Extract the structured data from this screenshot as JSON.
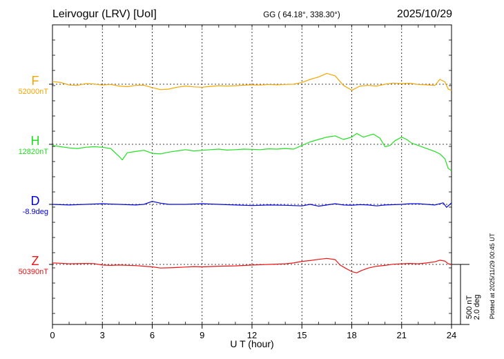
{
  "header": {
    "station": "Leirvogur (LRV)  [UoI]",
    "coords": "GG ( 64.18°, 338.30°)",
    "date": "2025/10/29"
  },
  "footer": {
    "plotted": "Plotted at 2025/11/29 00:45 UT"
  },
  "scale": {
    "line1": "500 nT",
    "line2": "2.0 deg"
  },
  "chart_data": {
    "type": "line",
    "xlabel": "U T (hour)",
    "xlim": [
      0,
      24
    ],
    "xticks": [
      "0",
      "3",
      "6",
      "9",
      "12",
      "15",
      "18",
      "21",
      "24"
    ],
    "grid": true,
    "scale_bar": {
      "magnetic_nT": 500,
      "angle_deg": 2.0
    },
    "panels": [
      {
        "name": "F",
        "baseline_label": "52000nT",
        "unit": "nT",
        "color": "#f5a500",
        "series": [
          [
            0,
            52022
          ],
          [
            0.5,
            52015
          ],
          [
            1,
            51993
          ],
          [
            1.5,
            51990
          ],
          [
            2,
            52005
          ],
          [
            2.5,
            52002
          ],
          [
            3,
            51993
          ],
          [
            3.5,
            51998
          ],
          [
            4,
            51985
          ],
          [
            4.5,
            51980
          ],
          [
            5,
            51990
          ],
          [
            5.5,
            51992
          ],
          [
            6,
            51972
          ],
          [
            6.5,
            51955
          ],
          [
            7,
            51960
          ],
          [
            7.5,
            51975
          ],
          [
            8,
            51985
          ],
          [
            8.5,
            51978
          ],
          [
            9,
            51975
          ],
          [
            9.5,
            51982
          ],
          [
            10,
            51988
          ],
          [
            10.5,
            51985
          ],
          [
            11,
            51988
          ],
          [
            11.5,
            51992
          ],
          [
            12,
            51995
          ],
          [
            12.5,
            51993
          ],
          [
            13,
            51998
          ],
          [
            13.5,
            51995
          ],
          [
            14,
            51998
          ],
          [
            14.5,
            52000
          ],
          [
            15,
            52015
          ],
          [
            15.5,
            52040
          ],
          [
            16,
            52060
          ],
          [
            16.5,
            52090
          ],
          [
            17,
            52070
          ],
          [
            17.5,
            51990
          ],
          [
            18,
            51950
          ],
          [
            18.5,
            51985
          ],
          [
            19,
            51990
          ],
          [
            19.5,
            51985
          ],
          [
            20,
            52000
          ],
          [
            20.5,
            52010
          ],
          [
            21,
            52005
          ],
          [
            21.5,
            52008
          ],
          [
            22,
            51998
          ],
          [
            22.5,
            51995
          ],
          [
            23,
            51990
          ],
          [
            23.3,
            52040
          ],
          [
            23.6,
            52020
          ],
          [
            23.8,
            51960
          ],
          [
            24,
            51950
          ]
        ]
      },
      {
        "name": "H",
        "baseline_label": "12820nT",
        "unit": "nT",
        "color": "#1fe01f",
        "series": [
          [
            0,
            12810
          ],
          [
            0.5,
            12800
          ],
          [
            1,
            12790
          ],
          [
            1.5,
            12785
          ],
          [
            2,
            12795
          ],
          [
            2.5,
            12800
          ],
          [
            3,
            12795
          ],
          [
            3.5,
            12785
          ],
          [
            4,
            12720
          ],
          [
            4.2,
            12690
          ],
          [
            4.5,
            12750
          ],
          [
            5,
            12760
          ],
          [
            5.5,
            12770
          ],
          [
            6,
            12745
          ],
          [
            6.5,
            12740
          ],
          [
            7,
            12755
          ],
          [
            7.5,
            12765
          ],
          [
            8,
            12775
          ],
          [
            8.5,
            12765
          ],
          [
            9,
            12770
          ],
          [
            9.5,
            12775
          ],
          [
            10,
            12780
          ],
          [
            10.5,
            12772
          ],
          [
            11,
            12775
          ],
          [
            11.5,
            12780
          ],
          [
            12,
            12778
          ],
          [
            12.5,
            12775
          ],
          [
            13,
            12782
          ],
          [
            13.5,
            12780
          ],
          [
            14,
            12785
          ],
          [
            14.5,
            12780
          ],
          [
            15,
            12810
          ],
          [
            15.5,
            12840
          ],
          [
            16,
            12860
          ],
          [
            16.5,
            12880
          ],
          [
            17,
            12890
          ],
          [
            17.5,
            12860
          ],
          [
            18,
            12880
          ],
          [
            18.3,
            12910
          ],
          [
            18.7,
            12880
          ],
          [
            19.3,
            12905
          ],
          [
            19.7,
            12870
          ],
          [
            20,
            12800
          ],
          [
            20.3,
            12810
          ],
          [
            20.6,
            12850
          ],
          [
            21,
            12880
          ],
          [
            21.3,
            12860
          ],
          [
            21.6,
            12830
          ],
          [
            22,
            12810
          ],
          [
            22.5,
            12785
          ],
          [
            23,
            12760
          ],
          [
            23.3,
            12740
          ],
          [
            23.6,
            12700
          ],
          [
            23.8,
            12620
          ],
          [
            24,
            12600
          ]
        ]
      },
      {
        "name": "D",
        "baseline_label": "-8.9deg",
        "unit": "deg",
        "color": "#0000dd",
        "series": [
          [
            0,
            -8.9
          ],
          [
            1,
            -8.92
          ],
          [
            2,
            -8.9
          ],
          [
            3,
            -8.88
          ],
          [
            3.5,
            -8.89
          ],
          [
            4,
            -8.9
          ],
          [
            5,
            -8.92
          ],
          [
            5.5,
            -8.9
          ],
          [
            6,
            -8.8
          ],
          [
            6.5,
            -8.86
          ],
          [
            7,
            -8.9
          ],
          [
            8,
            -8.9
          ],
          [
            9,
            -8.88
          ],
          [
            10,
            -8.9
          ],
          [
            11,
            -8.92
          ],
          [
            12,
            -8.94
          ],
          [
            13,
            -8.92
          ],
          [
            14,
            -8.93
          ],
          [
            15,
            -8.95
          ],
          [
            15.5,
            -8.9
          ],
          [
            16,
            -8.96
          ],
          [
            16.5,
            -8.92
          ],
          [
            17,
            -8.88
          ],
          [
            17.5,
            -8.92
          ],
          [
            18,
            -8.93
          ],
          [
            18.5,
            -8.91
          ],
          [
            19,
            -8.92
          ],
          [
            19.5,
            -8.95
          ],
          [
            20,
            -8.92
          ],
          [
            21,
            -8.9
          ],
          [
            21.5,
            -8.88
          ],
          [
            22,
            -8.88
          ],
          [
            22.5,
            -8.9
          ],
          [
            23,
            -8.92
          ],
          [
            23.5,
            -8.85
          ],
          [
            23.7,
            -9.0
          ],
          [
            24,
            -8.85
          ]
        ]
      },
      {
        "name": "Z",
        "baseline_label": "50390nT",
        "unit": "nT",
        "color": "#ee1111",
        "series": [
          [
            0,
            50402
          ],
          [
            0.5,
            50400
          ],
          [
            1,
            50395
          ],
          [
            2,
            50398
          ],
          [
            2.5,
            50397
          ],
          [
            3,
            50385
          ],
          [
            3.5,
            50382
          ],
          [
            4,
            50385
          ],
          [
            5,
            50380
          ],
          [
            5.5,
            50375
          ],
          [
            6,
            50370
          ],
          [
            6.5,
            50360
          ],
          [
            7,
            50362
          ],
          [
            7.5,
            50365
          ],
          [
            8,
            50368
          ],
          [
            8.5,
            50372
          ],
          [
            9,
            50370
          ],
          [
            10,
            50375
          ],
          [
            11,
            50378
          ],
          [
            12,
            50385
          ],
          [
            13,
            50390
          ],
          [
            14,
            50395
          ],
          [
            14.5,
            50402
          ],
          [
            15,
            50415
          ],
          [
            15.5,
            50422
          ],
          [
            16,
            50432
          ],
          [
            16.5,
            50440
          ],
          [
            17,
            50430
          ],
          [
            17.3,
            50385
          ],
          [
            17.6,
            50360
          ],
          [
            18,
            50330
          ],
          [
            18.3,
            50320
          ],
          [
            18.6,
            50340
          ],
          [
            19,
            50360
          ],
          [
            19.5,
            50375
          ],
          [
            20,
            50382
          ],
          [
            20.5,
            50392
          ],
          [
            21,
            50395
          ],
          [
            21.5,
            50398
          ],
          [
            22,
            50395
          ],
          [
            22.5,
            50402
          ],
          [
            23,
            50412
          ],
          [
            23.3,
            50425
          ],
          [
            23.6,
            50418
          ],
          [
            23.8,
            50395
          ],
          [
            24,
            50392
          ]
        ]
      }
    ]
  }
}
